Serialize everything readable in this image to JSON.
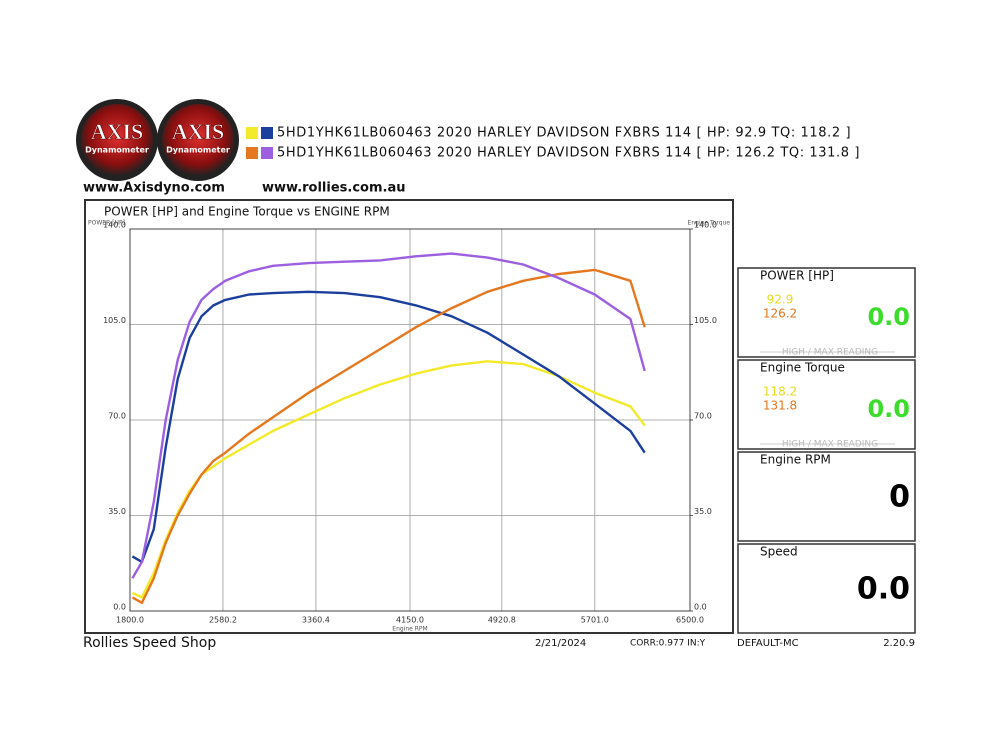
{
  "header": {
    "logos": [
      {
        "title": "AXIS",
        "subtitle": "Dynamometer"
      },
      {
        "title": "AXIS",
        "subtitle": "Dynamometer"
      }
    ],
    "links": [
      "www.Axisdyno.com",
      "www.rollies.com.au"
    ]
  },
  "chart_data": {
    "type": "line",
    "title": "POWER [HP] and Engine Torque vs ENGINE RPM",
    "y_label": "POWER [HP]",
    "y2_label": "Engine Torque",
    "x_label": "Engine RPM",
    "x": [
      1820,
      1900,
      2000,
      2100,
      2200,
      2300,
      2400,
      2500,
      2600,
      2800,
      3000,
      3300,
      3600,
      3900,
      4200,
      4500,
      4800,
      5100,
      5400,
      5700,
      6000,
      6120
    ],
    "xlim": [
      1800,
      6500
    ],
    "xticks": [
      {
        "value": 1800,
        "label": "1800.0"
      },
      {
        "value": 2580.2,
        "label": "2580.2"
      },
      {
        "value": 3360.4,
        "label": "3360.4"
      },
      {
        "value": 4150,
        "label": "4150.0"
      },
      {
        "value": 4920.8,
        "label": "4920.8"
      },
      {
        "value": 5701,
        "label": "5701.0"
      },
      {
        "value": 6500,
        "label": "6500.0"
      }
    ],
    "ylim": [
      0,
      140
    ],
    "yticks": [
      {
        "value": 0,
        "label": "0.0"
      },
      {
        "value": 35,
        "label": "35.0"
      },
      {
        "value": 70,
        "label": "70.0"
      },
      {
        "value": 105,
        "label": "105.0"
      },
      {
        "value": 140,
        "label": "140.0"
      }
    ],
    "y2lim": [
      0,
      140
    ],
    "y2ticks": [
      {
        "value": 0,
        "label": "0.0"
      },
      {
        "value": 35,
        "label": "35.0"
      },
      {
        "value": 70,
        "label": "70.0"
      },
      {
        "value": 105,
        "label": "105.0"
      },
      {
        "value": 140,
        "label": "140.0"
      }
    ],
    "grid": true,
    "runs": [
      {
        "name": "5HD1YHK61LB060463 2020 HARLEY DAVIDSON FXBRS 114 [ HP: 92.9 TQ: 118.2 ]",
        "series": [
          {
            "color": "#f2ea2a",
            "values": [
              6.6,
              5,
              14,
              26,
              36,
              44,
              50,
              53,
              56,
              61,
              66,
              72,
              78,
              83,
              87,
              90,
              91.5,
              90.5,
              86,
              80,
              75,
              68
            ]
          },
          {
            "color": "#1c3f9e",
            "axis": "y2",
            "values": [
              20,
              18,
              30,
              60,
              85,
              100,
              108,
              112,
              114,
              116,
              116.5,
              117,
              116.5,
              115,
              112,
              108,
              102,
              94,
              86,
              76,
              66,
              58
            ]
          }
        ]
      },
      {
        "name": "5HD1YHK61LB060463 2020 HARLEY DAVIDSON FXBRS 114 [ HP: 126.2 TQ: 131.8 ]",
        "series": [
          {
            "color": "#e5771e",
            "values": [
              5,
              3,
              12,
              25,
              35,
              43,
              50,
              55,
              58,
              65,
              71,
              80,
              88,
              96,
              104,
              111,
              117,
              121,
              123.5,
              125,
              121,
              104
            ]
          },
          {
            "color": "#9b5fe0",
            "axis": "y2",
            "values": [
              12,
              18,
              40,
              70,
              92,
              106,
              114,
              118,
              121,
              124.5,
              126.5,
              127.5,
              128,
              128.5,
              130,
              131,
              129.5,
              127,
              122,
              116,
              107,
              88
            ]
          }
        ]
      }
    ]
  },
  "panels": [
    {
      "title": "POWER [HP]",
      "readings": [
        "92.9",
        "126.2"
      ],
      "current": "0.0",
      "note": "HIGH / MAX READING"
    },
    {
      "title": "Engine Torque",
      "readings": [
        "118.2",
        "131.8"
      ],
      "current": "0.0",
      "note": "HIGH / MAX READING"
    },
    {
      "title": "Engine RPM",
      "current": "0"
    },
    {
      "title": "Speed",
      "current": "0.0"
    }
  ],
  "footer": {
    "shop": "Rollies Speed Shop",
    "date": "2/21/2024",
    "corr": "CORR:0.977 IN:Y",
    "profile": "DEFAULT-MC",
    "version": "2.20.9"
  }
}
